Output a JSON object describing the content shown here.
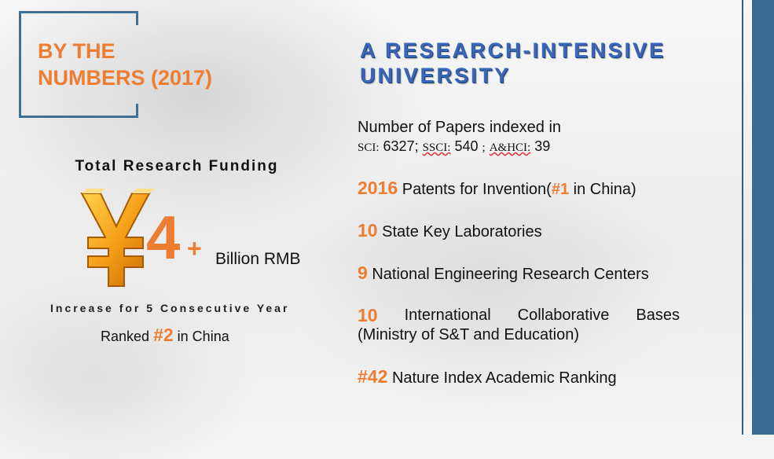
{
  "header": {
    "title_line1": "BY THE",
    "title_line2": "NUMBERS (2017)"
  },
  "main_heading": {
    "line1": "A RESEARCH-INTENSIVE",
    "line2": "UNIVERSITY"
  },
  "funding": {
    "title": "Total Research Funding",
    "symbol": "¥",
    "amount": "4",
    "plus": "+",
    "unit": "Billion RMB",
    "increase": "Increase for 5 Consecutive  Year",
    "ranked_prefix": "Ranked",
    "ranked_value": "#2",
    "ranked_suffix": "in China"
  },
  "facts": {
    "papers": {
      "line1": "Number of Papers indexed in",
      "sci_label": "SCI:",
      "sci_value": "6327;",
      "ssci_label": "SSCI:",
      "ssci_value": "540",
      "sep": ";",
      "ahci_label": "A&HCI:",
      "ahci_value": "39"
    },
    "patents": {
      "num": "2016",
      "text1": "Patents for Invention(",
      "rank": "#1",
      "text2": "in China)"
    },
    "labs": {
      "num": "10",
      "text": "State Key Laboratories"
    },
    "centers": {
      "num": "9",
      "text": "National Engineering Research Centers"
    },
    "bases": {
      "num": "10",
      "w1": "International",
      "w2": "Collaborative",
      "w3": "Bases",
      "line2": "(Ministry of S&T and Education)"
    },
    "nature": {
      "num": "#42",
      "text": "Nature Index Academic Ranking"
    }
  },
  "colors": {
    "accent": "#ed7d31",
    "heading_blue": "#3966b6",
    "band_blue": "#3a6a8f"
  }
}
